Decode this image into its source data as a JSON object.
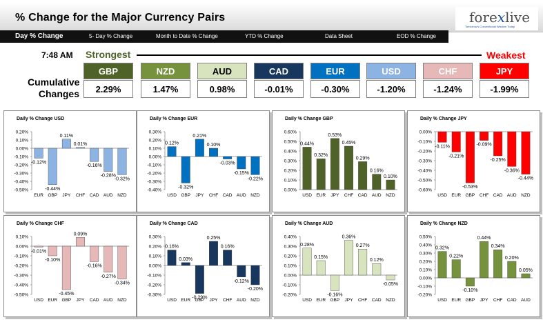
{
  "header": {
    "title": "% Change for the Major Currency Pairs",
    "logo": {
      "brand": "forexlive",
      "tagline": "Tomorrow's Conventional Wisdom Today"
    }
  },
  "nav": [
    "Day % Change",
    "5- Day % Change",
    "Month to Date % Change",
    "YTD % Change",
    "Data Sheet",
    "EOD % Change"
  ],
  "summary": {
    "time": "7:48 AM",
    "strongest_label": "Strongest",
    "weakest_label": "Weakest",
    "row_label_1": "Cumulative",
    "row_label_2": "Changes",
    "currencies": [
      {
        "name": "GBP",
        "value": "2.29%",
        "bg": "#4f6228",
        "fg": "#ffffff"
      },
      {
        "name": "NZD",
        "value": "1.47%",
        "bg": "#76923c",
        "fg": "#ffffff"
      },
      {
        "name": "AUD",
        "value": "0.98%",
        "bg": "#d7e4bd",
        "fg": "#000000"
      },
      {
        "name": "CAD",
        "value": "-0.01%",
        "bg": "#17375e",
        "fg": "#ffffff"
      },
      {
        "name": "EUR",
        "value": "-0.30%",
        "bg": "#0070c0",
        "fg": "#ffffff"
      },
      {
        "name": "USD",
        "value": "-1.20%",
        "bg": "#8db3e2",
        "fg": "#ffffff"
      },
      {
        "name": "CHF",
        "value": "-1.24%",
        "bg": "#e6b9b8",
        "fg": "#ffffff"
      },
      {
        "name": "JPY",
        "value": "-1.99%",
        "bg": "#ff0000",
        "fg": "#ffffff"
      }
    ]
  },
  "chart_data": [
    {
      "type": "bar",
      "title": "Daily % Change USD",
      "categories": [
        "EUR",
        "GBP",
        "JPY",
        "CHF",
        "CAD",
        "AUD",
        "NZD"
      ],
      "values": [
        -0.12,
        -0.44,
        0.11,
        0.01,
        -0.16,
        -0.28,
        -0.32
      ],
      "labels": [
        "-0.12%",
        "-0.44%",
        "0.11%",
        "0.01%",
        "-0.16%",
        "-0.28%",
        "-0.32%"
      ],
      "ylim": [
        -0.5,
        0.2
      ],
      "ticks": [
        "0.20%",
        "0.10%",
        "0.00%",
        "-0.10%",
        "-0.20%",
        "-0.30%",
        "-0.40%",
        "-0.50%"
      ],
      "color": "#8db3e2"
    },
    {
      "type": "bar",
      "title": "Daily % Change EUR",
      "categories": [
        "USD",
        "GBP",
        "JPY",
        "CHF",
        "CAD",
        "AUD",
        "NZD"
      ],
      "values": [
        0.12,
        -0.32,
        0.21,
        0.1,
        -0.03,
        -0.15,
        -0.22
      ],
      "labels": [
        "0.12%",
        "-0.32%",
        "0.21%",
        "0.10%",
        "-0.03%",
        "-0.15%",
        "-0.22%"
      ],
      "ylim": [
        -0.4,
        0.3
      ],
      "ticks": [
        "0.30%",
        "0.20%",
        "0.10%",
        "0.00%",
        "-0.10%",
        "-0.20%",
        "-0.30%",
        "-0.40%"
      ],
      "color": "#0070c0"
    },
    {
      "type": "bar",
      "title": "Daily % Change GBP",
      "categories": [
        "USD",
        "EUR",
        "JPY",
        "CHF",
        "CAD",
        "AUD",
        "NZD"
      ],
      "values": [
        0.44,
        0.32,
        0.53,
        0.45,
        0.29,
        0.16,
        0.1
      ],
      "labels": [
        "0.44%",
        "0.32%",
        "0.53%",
        "0.45%",
        "0.29%",
        "0.16%",
        "0.10%"
      ],
      "ylim": [
        0,
        0.6
      ],
      "ticks": [
        "0.60%",
        "0.50%",
        "0.40%",
        "0.30%",
        "0.20%",
        "0.10%",
        "0.00%"
      ],
      "color": "#4f6228"
    },
    {
      "type": "bar",
      "title": "Daily % Change JPY",
      "categories": [
        "USD",
        "EUR",
        "GBP",
        "CHF",
        "CAD",
        "AUD",
        "NZD"
      ],
      "values": [
        -0.11,
        -0.21,
        -0.53,
        -0.09,
        -0.25,
        -0.36,
        -0.44
      ],
      "labels": [
        "-0.11%",
        "-0.21%",
        "-0.53%",
        "-0.09%",
        "-0.25%",
        "-0.36%",
        "-0.44%"
      ],
      "ylim": [
        -0.6,
        0.0
      ],
      "ticks": [
        "0.00%",
        "-0.10%",
        "-0.20%",
        "-0.30%",
        "-0.40%",
        "-0.50%",
        "-0.60%"
      ],
      "color": "#ff0000"
    },
    {
      "type": "bar",
      "title": "Daily % Change CHF",
      "categories": [
        "USD",
        "EUR",
        "GBP",
        "JPY",
        "CAD",
        "AUD",
        "NZD"
      ],
      "values": [
        -0.01,
        -0.1,
        -0.45,
        0.09,
        -0.16,
        -0.27,
        -0.34
      ],
      "labels": [
        "-0.01%",
        "-0.10%",
        "-0.45%",
        "0.09%",
        "-0.16%",
        "-0.27%",
        "-0.34%"
      ],
      "ylim": [
        -0.5,
        0.1
      ],
      "ticks": [
        "0.10%",
        "0.00%",
        "-0.10%",
        "-0.20%",
        "-0.30%",
        "-0.40%",
        "-0.50%"
      ],
      "color": "#e6b9b8"
    },
    {
      "type": "bar",
      "title": "Daily % Change CAD",
      "categories": [
        "USD",
        "EUR",
        "GBP",
        "JPY",
        "CHF",
        "AUD",
        "NZD"
      ],
      "values": [
        0.16,
        0.03,
        -0.29,
        0.25,
        0.16,
        -0.12,
        -0.2
      ],
      "labels": [
        "0.16%",
        "0.03%",
        "-0.29%",
        "0.25%",
        "0.16%",
        "-0.12%",
        "-0.20%"
      ],
      "ylim": [
        -0.3,
        0.3
      ],
      "ticks": [
        "0.30%",
        "0.20%",
        "0.10%",
        "0.00%",
        "-0.10%",
        "-0.20%",
        "-0.30%"
      ],
      "color": "#17375e"
    },
    {
      "type": "bar",
      "title": "Daily % Change AUD",
      "categories": [
        "USD",
        "EUR",
        "GBP",
        "JPY",
        "CHF",
        "CAD",
        "NZD"
      ],
      "values": [
        0.28,
        0.15,
        -0.16,
        0.36,
        0.27,
        0.12,
        -0.05
      ],
      "labels": [
        "0.28%",
        "0.15%",
        "-0.16%",
        "0.36%",
        "0.27%",
        "0.12%",
        "-0.05%"
      ],
      "ylim": [
        -0.2,
        0.4
      ],
      "ticks": [
        "0.40%",
        "0.30%",
        "0.20%",
        "0.10%",
        "0.00%",
        "-0.10%",
        "-0.20%"
      ],
      "color": "#d7e4bd"
    },
    {
      "type": "bar",
      "title": "Daily % Change NZD",
      "categories": [
        "USD",
        "EUR",
        "GBP",
        "JPY",
        "CHF",
        "CAD",
        "AUD"
      ],
      "values": [
        0.32,
        0.22,
        -0.1,
        0.44,
        0.34,
        0.2,
        0.05
      ],
      "labels": [
        "0.32%",
        "0.22%",
        "-0.10%",
        "0.44%",
        "0.34%",
        "0.20%",
        "0.05%"
      ],
      "ylim": [
        -0.2,
        0.5
      ],
      "ticks": [
        "0.50%",
        "0.40%",
        "0.30%",
        "0.20%",
        "0.10%",
        "0.00%",
        "-0.10%",
        "-0.20%"
      ],
      "color": "#76923c"
    }
  ]
}
